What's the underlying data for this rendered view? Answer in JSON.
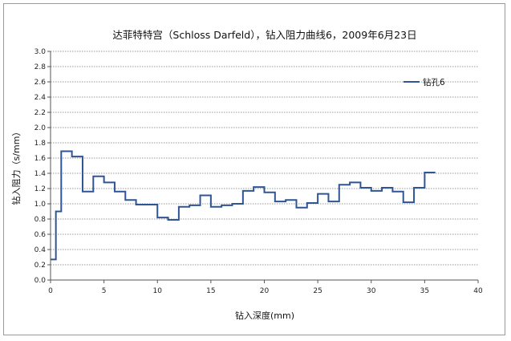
{
  "chart_data": {
    "type": "line",
    "title": "达菲特特宫（Schloss Darfeld），钻入阻力曲线6，2009年6月23日",
    "xlabel": "钻入深度(mm)",
    "ylabel": "钻入阻力（s/mm）",
    "xlim": [
      0,
      40
    ],
    "ylim": [
      0,
      3.0
    ],
    "x_ticks": [
      "0",
      "5",
      "10",
      "15",
      "20",
      "25",
      "30",
      "35",
      "40"
    ],
    "y_ticks": [
      "0.0",
      "0.2",
      "0.4",
      "0.6",
      "0.8",
      "1.0",
      "1.2",
      "1.4",
      "1.6",
      "1.8",
      "2.0",
      "2.2",
      "2.4",
      "2.6",
      "2.8",
      "3.0"
    ],
    "grid": "horizontal dotted",
    "legend_position": "top-right",
    "line_style": "step",
    "series": [
      {
        "name": "钻孔6",
        "color": "#2f5597",
        "x": [
          0,
          0.5,
          1,
          2,
          3,
          4,
          5,
          6,
          7,
          8,
          9,
          10,
          11,
          12,
          13,
          14,
          15,
          16,
          17,
          18,
          19,
          20,
          21,
          22,
          23,
          24,
          25,
          26,
          27,
          28,
          29,
          30,
          31,
          32,
          33,
          34,
          35,
          36
        ],
        "y": [
          0.27,
          0.9,
          1.69,
          1.62,
          1.16,
          1.36,
          1.28,
          1.16,
          1.05,
          0.99,
          0.99,
          0.82,
          0.79,
          0.96,
          0.98,
          1.11,
          0.96,
          0.98,
          1.0,
          1.17,
          1.22,
          1.15,
          1.03,
          1.05,
          0.95,
          1.01,
          1.13,
          1.03,
          1.25,
          1.28,
          1.21,
          1.17,
          1.21,
          1.16,
          1.02,
          1.21,
          1.41,
          1.41
        ]
      }
    ]
  }
}
